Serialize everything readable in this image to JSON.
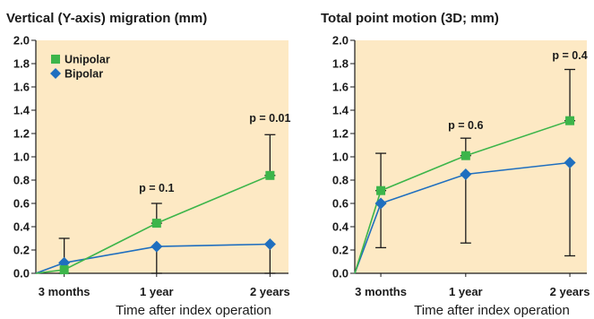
{
  "colors": {
    "unipolar": "#3cb54a",
    "bipolar": "#1f6fbf",
    "plot_background": "#fde9c4",
    "error_bar": "#1a1a1a",
    "axis": "#1a1a1a"
  },
  "chart_data": [
    {
      "type": "line",
      "title": "Vertical (Y-axis) migration (mm)",
      "xlabel": "Time after index operation",
      "ylabel": "",
      "categories": [
        "3 months",
        "1 year",
        "2 years"
      ],
      "x_range": [
        0,
        2.05
      ],
      "ylim": [
        0,
        2.0
      ],
      "yticks": [
        "0.0",
        "0.2",
        "0.4",
        "0.6",
        "0.8",
        "1.0",
        "1.2",
        "1.4",
        "1.6",
        "1.8",
        "2.0"
      ],
      "grid": false,
      "legend": {
        "position": "top-left",
        "entries": [
          "Unipolar",
          "Bipolar"
        ]
      },
      "series": [
        {
          "name": "Unipolar",
          "marker": "square",
          "x": [
            0,
            0.23,
            0.98,
            1.9
          ],
          "y": [
            0,
            0.03,
            0.43,
            0.84
          ],
          "error_bars": [
            null,
            null,
            [
              0.43,
              0.6
            ],
            [
              0.84,
              1.19
            ]
          ]
        },
        {
          "name": "Bipolar",
          "marker": "diamond",
          "x": [
            0,
            0.23,
            0.98,
            1.9
          ],
          "y": [
            0,
            0.09,
            0.23,
            0.25
          ],
          "error_bars": [
            null,
            [
              0,
              0.3
            ],
            [
              0,
              0.23
            ],
            [
              0,
              0.25
            ]
          ]
        }
      ],
      "annotations": [
        {
          "text": "p = 0.1",
          "x": 0.98,
          "y": 0.7
        },
        {
          "text": "p = 0.01",
          "x": 1.9,
          "y": 1.3
        }
      ]
    },
    {
      "type": "line",
      "title": "Total point motion (3D; mm)",
      "xlabel": "Time after index operation",
      "ylabel": "",
      "categories": [
        "3 months",
        "1 year",
        "2 years"
      ],
      "x_range": [
        0,
        2.05
      ],
      "ylim": [
        0,
        2.0
      ],
      "yticks": [
        "0.0",
        "0.2",
        "0.4",
        "0.6",
        "0.8",
        "1.0",
        "1.2",
        "1.4",
        "1.6",
        "1.8",
        "2.0"
      ],
      "grid": false,
      "legend": null,
      "series": [
        {
          "name": "Unipolar",
          "marker": "square",
          "x": [
            0,
            0.23,
            0.98,
            1.9
          ],
          "y": [
            0,
            0.71,
            1.01,
            1.31
          ],
          "error_bars": [
            null,
            [
              0.71,
              1.03
            ],
            [
              1.01,
              1.16
            ],
            [
              1.31,
              1.75
            ]
          ]
        },
        {
          "name": "Bipolar",
          "marker": "diamond",
          "x": [
            0,
            0.23,
            0.98,
            1.9
          ],
          "y": [
            0,
            0.6,
            0.85,
            0.95
          ],
          "error_bars": [
            null,
            [
              0.22,
              0.6
            ],
            [
              0.26,
              0.85
            ],
            [
              0.15,
              0.95
            ]
          ]
        }
      ],
      "annotations": [
        {
          "text": "p = 0.6",
          "x": 0.98,
          "y": 1.24
        },
        {
          "text": "p = 0.4",
          "x": 1.9,
          "y": 1.84
        }
      ]
    }
  ]
}
